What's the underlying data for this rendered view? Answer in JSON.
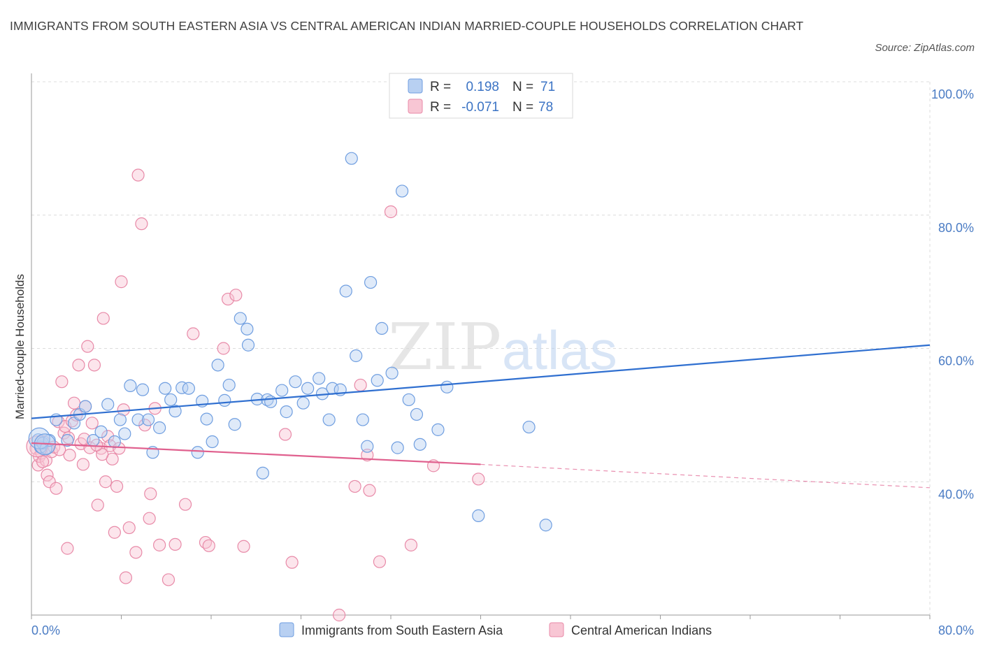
{
  "title": "IMMIGRANTS FROM SOUTH EASTERN ASIA VS CENTRAL AMERICAN INDIAN MARRIED-COUPLE HOUSEHOLDS CORRELATION CHART",
  "source": "Source: ZipAtlas.com",
  "watermark": {
    "zip": "ZIP",
    "atlas": "atlas"
  },
  "legend": {
    "series": [
      {
        "r_label": "R =",
        "r_value": "0.198",
        "n_label": "N =",
        "n_value": "71"
      },
      {
        "r_label": "R =",
        "r_value": "-0.071",
        "n_label": "N =",
        "n_value": "78"
      }
    ]
  },
  "chart_data": {
    "type": "scatter",
    "ylabel": "Married-couple Households",
    "xlim": [
      0,
      80
    ],
    "ylim": [
      20,
      100
    ],
    "x_tick_labels": [
      {
        "value": 0,
        "label": "0.0%"
      },
      {
        "value": 80,
        "label": "80.0%"
      }
    ],
    "y_tick_labels": [
      {
        "value": 100,
        "label": "100.0%"
      },
      {
        "value": 80,
        "label": "80.0%"
      },
      {
        "value": 60,
        "label": "60.0%"
      },
      {
        "value": 40,
        "label": "40.0%"
      }
    ],
    "grid": true,
    "legend_placement": "top-center",
    "series": [
      {
        "name": "Immigrants from South Eastern Asia",
        "color": "#6f9ee0",
        "fill": "#b8d0f2",
        "line_color": "#2f6fd0",
        "trend": {
          "x": [
            0,
            80
          ],
          "y": [
            49.5,
            60.5
          ]
        },
        "points": [
          [
            0.6,
            46.3
          ],
          [
            0.8,
            45.2
          ],
          [
            1.0,
            45.8
          ],
          [
            1.3,
            45.0
          ],
          [
            1.6,
            46.2
          ],
          [
            2.2,
            49.3
          ],
          [
            3.2,
            46.2
          ],
          [
            3.8,
            48.8
          ],
          [
            4.3,
            50.1
          ],
          [
            4.8,
            51.3
          ],
          [
            5.5,
            46.2
          ],
          [
            6.2,
            47.5
          ],
          [
            6.8,
            51.6
          ],
          [
            7.4,
            46.0
          ],
          [
            7.9,
            49.3
          ],
          [
            8.3,
            47.2
          ],
          [
            8.8,
            54.4
          ],
          [
            9.5,
            49.3
          ],
          [
            9.9,
            53.8
          ],
          [
            10.4,
            49.3
          ],
          [
            10.8,
            44.4
          ],
          [
            11.4,
            48.1
          ],
          [
            11.9,
            54.0
          ],
          [
            12.4,
            52.3
          ],
          [
            12.8,
            50.6
          ],
          [
            13.4,
            54.1
          ],
          [
            14.0,
            54.0
          ],
          [
            14.8,
            44.4
          ],
          [
            15.2,
            52.1
          ],
          [
            15.6,
            49.4
          ],
          [
            16.1,
            46.0
          ],
          [
            16.6,
            57.5
          ],
          [
            17.2,
            52.2
          ],
          [
            17.6,
            54.5
          ],
          [
            18.1,
            48.6
          ],
          [
            18.6,
            64.5
          ],
          [
            19.2,
            62.9
          ],
          [
            19.3,
            60.5
          ],
          [
            20.1,
            52.4
          ],
          [
            20.6,
            41.3
          ],
          [
            21.0,
            52.3
          ],
          [
            21.3,
            52.0
          ],
          [
            22.3,
            53.7
          ],
          [
            22.7,
            50.5
          ],
          [
            23.5,
            55.0
          ],
          [
            24.2,
            51.8
          ],
          [
            24.6,
            54.0
          ],
          [
            25.6,
            55.5
          ],
          [
            25.9,
            53.2
          ],
          [
            26.5,
            49.3
          ],
          [
            26.8,
            54.0
          ],
          [
            27.5,
            53.8
          ],
          [
            28.0,
            68.6
          ],
          [
            28.5,
            88.5
          ],
          [
            28.9,
            58.9
          ],
          [
            29.5,
            49.3
          ],
          [
            29.9,
            45.3
          ],
          [
            30.2,
            69.9
          ],
          [
            30.8,
            55.2
          ],
          [
            31.2,
            63.0
          ],
          [
            32.1,
            56.3
          ],
          [
            32.6,
            45.1
          ],
          [
            33.0,
            83.6
          ],
          [
            33.6,
            52.3
          ],
          [
            34.3,
            50.1
          ],
          [
            34.6,
            45.6
          ],
          [
            36.2,
            47.8
          ],
          [
            37.0,
            54.2
          ],
          [
            39.8,
            34.9
          ],
          [
            44.3,
            48.2
          ],
          [
            45.8,
            33.5
          ]
        ],
        "big_points": [
          [
            0.7,
            46.5
          ],
          [
            1.2,
            45.6
          ]
        ]
      },
      {
        "name": "Central American Indians",
        "color": "#e88aa8",
        "fill": "#f8c6d4",
        "line_color": "#e0608e",
        "trend": {
          "x": [
            0,
            40
          ],
          "y": [
            45.8,
            42.6
          ]
        },
        "trend_dashed": {
          "x": [
            40,
            80
          ],
          "y": [
            42.6,
            39.1
          ]
        },
        "points": [
          [
            0.4,
            45.0
          ],
          [
            0.6,
            42.5
          ],
          [
            0.7,
            43.8
          ],
          [
            0.9,
            44.3
          ],
          [
            1.1,
            46.0
          ],
          [
            1.3,
            43.2
          ],
          [
            1.4,
            41.0
          ],
          [
            1.6,
            40.0
          ],
          [
            1.8,
            44.5
          ],
          [
            2.0,
            45.2
          ],
          [
            2.2,
            39.0
          ],
          [
            2.4,
            49.0
          ],
          [
            2.7,
            55.0
          ],
          [
            2.9,
            47.3
          ],
          [
            3.0,
            48.3
          ],
          [
            3.2,
            30.0
          ],
          [
            3.4,
            44.0
          ],
          [
            3.6,
            49.1
          ],
          [
            3.8,
            51.8
          ],
          [
            4.0,
            50.0
          ],
          [
            4.2,
            57.5
          ],
          [
            4.4,
            45.7
          ],
          [
            4.6,
            42.6
          ],
          [
            4.8,
            51.3
          ],
          [
            5.0,
            60.3
          ],
          [
            5.2,
            45.1
          ],
          [
            5.4,
            48.8
          ],
          [
            5.6,
            57.5
          ],
          [
            5.9,
            36.5
          ],
          [
            6.2,
            45.0
          ],
          [
            6.4,
            64.5
          ],
          [
            6.6,
            40.0
          ],
          [
            6.8,
            46.8
          ],
          [
            7.0,
            45.4
          ],
          [
            7.2,
            43.4
          ],
          [
            7.4,
            32.4
          ],
          [
            7.6,
            39.3
          ],
          [
            7.8,
            45.0
          ],
          [
            8.0,
            70.0
          ],
          [
            8.2,
            50.8
          ],
          [
            8.4,
            25.6
          ],
          [
            8.7,
            33.1
          ],
          [
            9.3,
            29.4
          ],
          [
            9.5,
            86.0
          ],
          [
            9.8,
            78.7
          ],
          [
            10.1,
            48.5
          ],
          [
            10.5,
            34.5
          ],
          [
            10.6,
            38.2
          ],
          [
            11.0,
            51.0
          ],
          [
            11.4,
            30.5
          ],
          [
            12.2,
            25.3
          ],
          [
            12.8,
            30.6
          ],
          [
            13.7,
            36.6
          ],
          [
            14.4,
            62.2
          ],
          [
            15.5,
            30.9
          ],
          [
            15.8,
            30.4
          ],
          [
            17.1,
            60.0
          ],
          [
            17.5,
            67.4
          ],
          [
            18.2,
            68.0
          ],
          [
            18.9,
            30.3
          ],
          [
            22.6,
            47.1
          ],
          [
            23.2,
            27.9
          ],
          [
            27.4,
            20.0
          ],
          [
            28.8,
            39.3
          ],
          [
            29.3,
            54.5
          ],
          [
            29.9,
            44.0
          ],
          [
            30.1,
            38.7
          ],
          [
            31.0,
            28.0
          ],
          [
            32.0,
            80.5
          ],
          [
            33.8,
            30.5
          ],
          [
            35.8,
            42.4
          ],
          [
            39.8,
            40.4
          ],
          [
            2.5,
            44.8
          ],
          [
            1.0,
            43.0
          ],
          [
            3.3,
            46.6
          ],
          [
            6.3,
            44.1
          ],
          [
            5.8,
            45.5
          ],
          [
            4.7,
            46.4
          ]
        ],
        "big_points": [
          [
            0.5,
            45.3
          ]
        ]
      }
    ]
  }
}
